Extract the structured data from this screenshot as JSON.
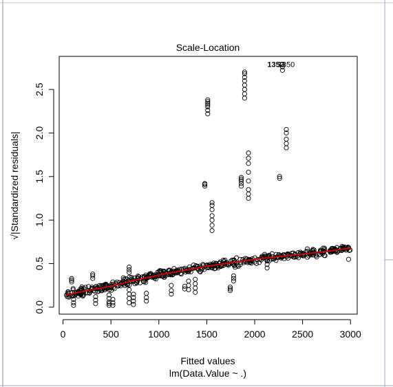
{
  "chart_data": {
    "type": "scatter",
    "title": "Scale-Location",
    "xlabel": "Fitted values",
    "xlabel_sub": "lm(Data.Value ~ .)",
    "ylabel": "√|Standardized residuals|",
    "xlim": [
      -40,
      3070
    ],
    "ylim": [
      -0.08,
      2.88
    ],
    "x_ticks": [
      0,
      500,
      1000,
      1500,
      2000,
      2500,
      3000
    ],
    "x_tick_labels": [
      "0",
      "500",
      "1000",
      "1500",
      "2000",
      "2500",
      "3000"
    ],
    "y_ticks": [
      0.0,
      0.5,
      1.0,
      1.5,
      2.0,
      2.5
    ],
    "y_tick_labels": [
      "0.0",
      "0.5",
      "1.0",
      "1.5",
      "2.0",
      "2.5"
    ],
    "smoother_color": "#cc0000",
    "annotations": [
      {
        "text": "1352",
        "x": 2220,
        "y": 2.79,
        "bold": true
      },
      {
        "text": "1350",
        "x": 2330,
        "y": 2.79,
        "bold": false
      }
    ],
    "outlier_groups": [
      {
        "x": 1480,
        "y": [
          1.39,
          1.41,
          1.42
        ]
      },
      {
        "x": 1510,
        "y": [
          2.22,
          2.26,
          2.3,
          2.32,
          2.34,
          2.36,
          2.38
        ]
      },
      {
        "x": 1555,
        "y": [
          0.88,
          0.94,
          1.0,
          1.05,
          1.12,
          1.17,
          1.2
        ]
      },
      {
        "x": 1860,
        "y": [
          1.39,
          1.42,
          1.45,
          1.47,
          1.49
        ]
      },
      {
        "x": 1895,
        "y": [
          2.4,
          2.45,
          2.5,
          2.55,
          2.6,
          2.64,
          2.68,
          2.7
        ]
      },
      {
        "x": 1935,
        "y": [
          1.25,
          1.3,
          1.35,
          1.45,
          1.55,
          1.65,
          1.71,
          1.77
        ]
      },
      {
        "x": 2260,
        "y": [
          1.48,
          1.5
        ]
      },
      {
        "x": 2290,
        "y": [
          2.72,
          2.76,
          2.79
        ]
      },
      {
        "x": 2330,
        "y": [
          1.83,
          1.88,
          1.93,
          2.0,
          2.04
        ]
      },
      {
        "x": 1745,
        "y": [
          0.19,
          0.21,
          0.23
        ]
      },
      {
        "x": 1780,
        "y": [
          0.3,
          0.33,
          0.36
        ]
      },
      {
        "x": 1310,
        "y": [
          0.2,
          0.25,
          0.3
        ]
      },
      {
        "x": 1380,
        "y": [
          0.17,
          0.22,
          0.27,
          0.32
        ]
      },
      {
        "x": 1270,
        "y": [
          0.21,
          0.24
        ]
      },
      {
        "x": 1130,
        "y": [
          0.15,
          0.19,
          0.25
        ]
      },
      {
        "x": 870,
        "y": [
          0.07,
          0.11,
          0.16
        ]
      },
      {
        "x": 690,
        "y": [
          0.05,
          0.1,
          0.15,
          0.2
        ]
      },
      {
        "x": 735,
        "y": [
          0.03,
          0.07,
          0.11,
          0.15
        ]
      },
      {
        "x": 480,
        "y": [
          0.02,
          0.04,
          0.06,
          0.1,
          0.14
        ]
      },
      {
        "x": 520,
        "y": [
          0.02,
          0.05,
          0.09
        ]
      },
      {
        "x": 110,
        "y": [
          0.02,
          0.05,
          0.09
        ]
      },
      {
        "x": 90,
        "y": [
          0.29,
          0.31,
          0.33
        ]
      },
      {
        "x": 310,
        "y": [
          0.33,
          0.36,
          0.38
        ]
      },
      {
        "x": 340,
        "y": [
          0.04,
          0.08,
          0.12
        ]
      },
      {
        "x": 690,
        "y": [
          0.4,
          0.43,
          0.46
        ]
      },
      {
        "x": 2130,
        "y": [
          0.45,
          0.49
        ]
      },
      {
        "x": 2980,
        "y": [
          0.55
        ]
      }
    ],
    "smoother": {
      "x": [
        30,
        250,
        500,
        750,
        1000,
        1250,
        1500,
        1750,
        2000,
        2250,
        2500,
        2750,
        3000
      ],
      "y": [
        0.14,
        0.19,
        0.24,
        0.31,
        0.37,
        0.42,
        0.47,
        0.51,
        0.55,
        0.58,
        0.61,
        0.64,
        0.68
      ]
    },
    "band": {
      "x_min": 30,
      "x_max": 3000,
      "spread": 0.07,
      "point_count": 520,
      "seed": 1350
    }
  }
}
